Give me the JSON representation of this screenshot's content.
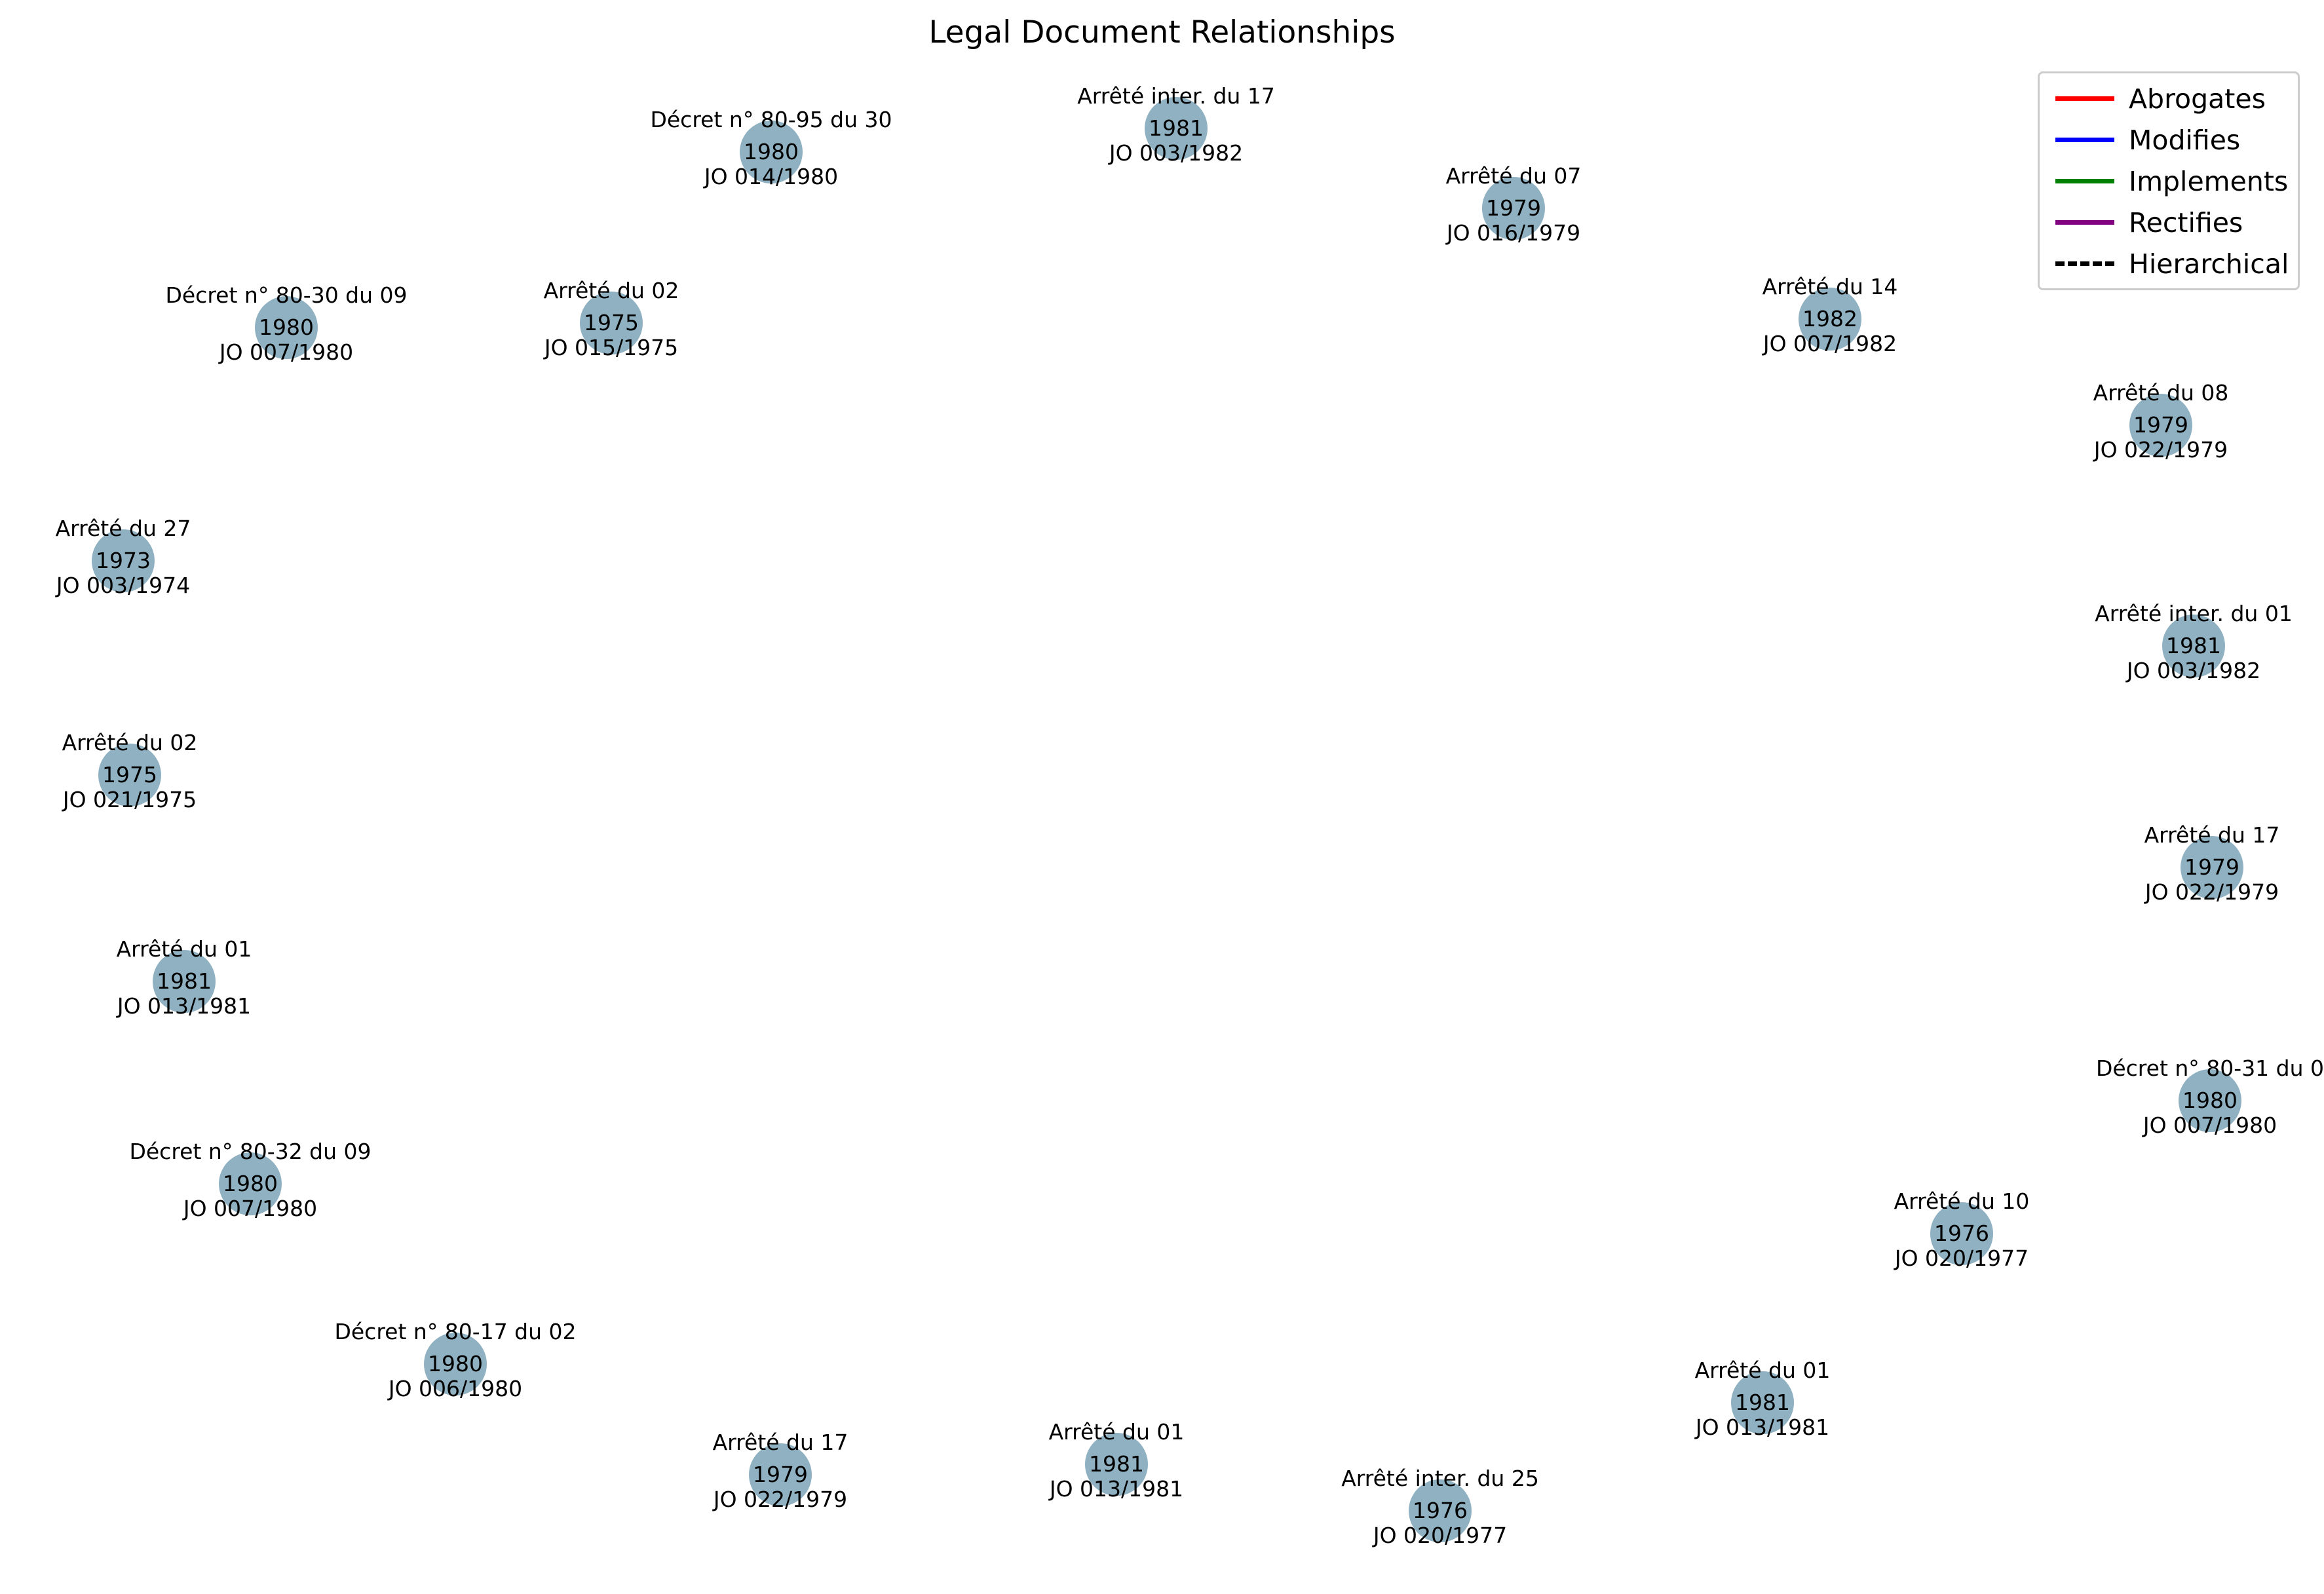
{
  "title": "Legal Document Relationships",
  "legend": [
    {
      "label": "Abrogates",
      "color": "#ff0000",
      "style": "solid"
    },
    {
      "label": "Modifies",
      "color": "#0000ff",
      "style": "solid"
    },
    {
      "label": "Implements",
      "color": "#008000",
      "style": "solid"
    },
    {
      "label": "Rectifies",
      "color": "#800080",
      "style": "solid"
    },
    {
      "label": "Hierarchical",
      "color": "#000000",
      "style": "dashed"
    }
  ],
  "node_color": "#8fb1c2",
  "nodes": [
    {
      "name": "Décret n° 80-95 du 30",
      "year": "1980",
      "jo": "JO 014/1980"
    },
    {
      "name": "Arrêté inter. du 17",
      "year": "1981",
      "jo": "JO 003/1982"
    },
    {
      "name": "Arrêté du 07",
      "year": "1979",
      "jo": "JO 016/1979"
    },
    {
      "name": "Décret n° 80-30 du 09",
      "year": "1980",
      "jo": "JO 007/1980"
    },
    {
      "name": "Arrêté du 02",
      "year": "1975",
      "jo": "JO 015/1975"
    },
    {
      "name": "Arrêté du 14",
      "year": "1982",
      "jo": "JO 007/1982"
    },
    {
      "name": "Arrêté du 08",
      "year": "1979",
      "jo": "JO 022/1979"
    },
    {
      "name": "Arrêté du 27",
      "year": "1973",
      "jo": "JO 003/1974"
    },
    {
      "name": "Arrêté inter. du 01",
      "year": "1981",
      "jo": "JO 003/1982"
    },
    {
      "name": "Arrêté du 02",
      "year": "1975",
      "jo": "JO 021/1975"
    },
    {
      "name": "Arrêté du 17",
      "year": "1979",
      "jo": "JO 022/1979"
    },
    {
      "name": "Arrêté du 01",
      "year": "1981",
      "jo": "JO 013/1981"
    },
    {
      "name": "Décret n° 80-31 du 0",
      "year": "1980",
      "jo": "JO 007/1980"
    },
    {
      "name": "Décret n° 80-32 du 09",
      "year": "1980",
      "jo": "JO 007/1980"
    },
    {
      "name": "Arrêté du 10",
      "year": "1976",
      "jo": "JO 020/1977"
    },
    {
      "name": "Décret n° 80-17 du 02",
      "year": "1980",
      "jo": "JO 006/1980"
    },
    {
      "name": "Arrêté du 01",
      "year": "1981",
      "jo": "JO 013/1981"
    },
    {
      "name": "Arrêté du 17",
      "year": "1979",
      "jo": "JO 022/1979"
    },
    {
      "name": "Arrêté du 01",
      "year": "1981",
      "jo": "JO 013/1981"
    },
    {
      "name": "Arrêté inter. du 25",
      "year": "1976",
      "jo": "JO 020/1977"
    }
  ]
}
